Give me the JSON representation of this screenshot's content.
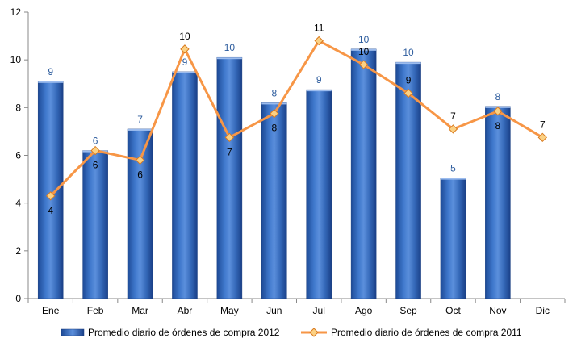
{
  "chart_data": {
    "type": "bar",
    "categories": [
      "Ene",
      "Feb",
      "Mar",
      "Abr",
      "May",
      "Jun",
      "Jul",
      "Ago",
      "Sep",
      "Oct",
      "Nov",
      "Dic"
    ],
    "ylim": [
      0,
      12
    ],
    "yticks": [
      "0",
      "2",
      "4",
      "6",
      "8",
      "10",
      "12"
    ],
    "grid": false,
    "legend_position": "bottom",
    "series": [
      {
        "name": "Promedio diario de órdenes de compra 2012",
        "type": "bar",
        "color": "#3a6fc0",
        "values": [
          9.1,
          6.2,
          7.1,
          9.5,
          10.1,
          8.2,
          8.75,
          10.45,
          9.9,
          5.05,
          8.05,
          null
        ],
        "labels": [
          "9",
          "6",
          "7",
          "9",
          "10",
          "8",
          "9",
          "10",
          "10",
          "5",
          "8",
          ""
        ]
      },
      {
        "name": "Promedio diario de órdenes de compra 2011",
        "type": "line",
        "color": "#f79646",
        "values": [
          4.3,
          6.2,
          5.8,
          10.45,
          6.75,
          7.75,
          10.8,
          9.8,
          8.6,
          7.1,
          7.85,
          6.75
        ],
        "labels": [
          "4",
          "6",
          "6",
          "10",
          "7",
          "8",
          "11",
          "10",
          "9",
          "7",
          "8",
          "7"
        ]
      }
    ]
  }
}
